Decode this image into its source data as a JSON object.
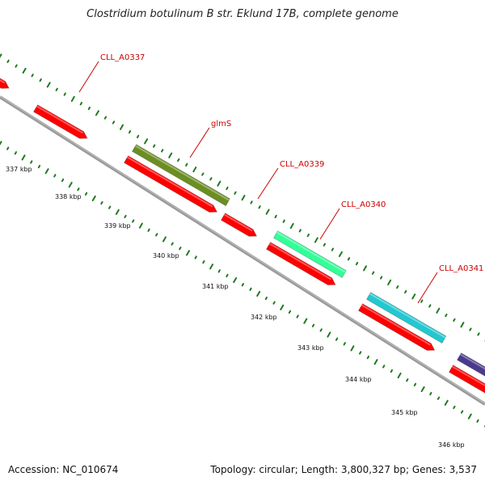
{
  "title": "Clostridium botulinum B str. Eklund 17B, complete genome",
  "footer": {
    "accession": "Accession: NC_010674",
    "topology": "Topology: circular; Length: 3,800,327 bp; Genes: 3,537"
  },
  "ruler_labels": [
    "337 kbp",
    "338 kbp",
    "339 kbp",
    "340 kbp",
    "341 kbp",
    "342 kbp",
    "343 kbp",
    "344 kbp",
    "345 kbp",
    "346 kbp"
  ],
  "gene_labels": [
    "CLL_A0337",
    "glmS",
    "CLL_A0339",
    "CLL_A0340",
    "CLL_A0341"
  ],
  "colors": {
    "backbone": "#808080",
    "cds": "#ff0000",
    "label_line": "#cc0000",
    "ruler": "#1f7a1f",
    "glmS": "#6b8e23",
    "CLL_A0340": "#33ff99",
    "CLL_A0341": "#22c8d0",
    "unknown_gene": "#4b3a8c"
  }
}
